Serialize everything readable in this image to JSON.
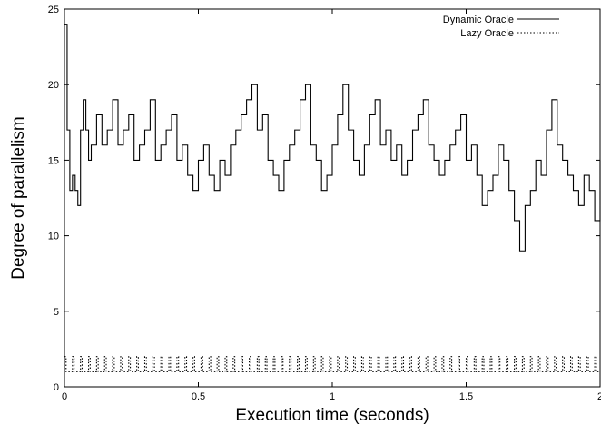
{
  "chart_data": {
    "type": "line",
    "xlabel": "Execution time (seconds)",
    "ylabel": "Degree of parallelism",
    "xlim": [
      0,
      2
    ],
    "ylim": [
      0,
      25
    ],
    "x_ticks": [
      0,
      0.5,
      1,
      1.5,
      2
    ],
    "x_tick_labels": [
      "0",
      "0.5",
      "1",
      "1.5",
      "2"
    ],
    "y_ticks": [
      0,
      5,
      10,
      15,
      20,
      25
    ],
    "y_tick_labels": [
      "0",
      "5",
      "10",
      "15",
      "20",
      "25"
    ],
    "grid": false,
    "legend_position": "top-right",
    "series": [
      {
        "name": "Dynamic Oracle",
        "style": "solid",
        "color": "#000000",
        "x": [
          0,
          0.01,
          0.02,
          0.03,
          0.04,
          0.05,
          0.06,
          0.07,
          0.08,
          0.09,
          0.1,
          0.12,
          0.14,
          0.16,
          0.18,
          0.2,
          0.22,
          0.24,
          0.26,
          0.28,
          0.3,
          0.32,
          0.34,
          0.36,
          0.38,
          0.4,
          0.42,
          0.44,
          0.46,
          0.48,
          0.5,
          0.52,
          0.54,
          0.56,
          0.58,
          0.6,
          0.62,
          0.64,
          0.66,
          0.68,
          0.7,
          0.72,
          0.74,
          0.76,
          0.78,
          0.8,
          0.82,
          0.84,
          0.86,
          0.88,
          0.9,
          0.92,
          0.94,
          0.96,
          0.98,
          1.0,
          1.02,
          1.04,
          1.06,
          1.08,
          1.1,
          1.12,
          1.14,
          1.16,
          1.18,
          1.2,
          1.22,
          1.24,
          1.26,
          1.28,
          1.3,
          1.32,
          1.34,
          1.36,
          1.38,
          1.4,
          1.42,
          1.44,
          1.46,
          1.48,
          1.5,
          1.52,
          1.54,
          1.56,
          1.58,
          1.6,
          1.62,
          1.64,
          1.66,
          1.68,
          1.7,
          1.72,
          1.74,
          1.76,
          1.78,
          1.8,
          1.82,
          1.84,
          1.86,
          1.88,
          1.9,
          1.92,
          1.94,
          1.96,
          1.98,
          2.0
        ],
        "y": [
          24,
          17,
          13,
          14,
          13,
          12,
          17,
          19,
          17,
          15,
          16,
          18,
          16,
          17,
          19,
          16,
          17,
          18,
          15,
          16,
          17,
          19,
          15,
          16,
          17,
          18,
          15,
          16,
          14,
          13,
          15,
          16,
          14,
          13,
          15,
          14,
          16,
          17,
          18,
          19,
          20,
          17,
          18,
          15,
          14,
          13,
          15,
          16,
          17,
          19,
          20,
          16,
          15,
          13,
          14,
          16,
          18,
          20,
          17,
          15,
          14,
          16,
          18,
          19,
          16,
          17,
          15,
          16,
          14,
          15,
          17,
          18,
          19,
          16,
          15,
          14,
          15,
          16,
          17,
          18,
          15,
          16,
          14,
          12,
          13,
          14,
          16,
          15,
          13,
          11,
          9,
          12,
          13,
          15,
          14,
          17,
          19,
          16,
          15,
          14,
          13,
          12,
          14,
          13,
          11,
          15
        ],
        "step": true
      },
      {
        "name": "Lazy Oracle",
        "style": "dotted",
        "color": "#000000",
        "x": [
          0.0,
          0.006,
          0.03,
          0.036,
          0.06,
          0.066,
          0.09,
          0.096,
          0.12,
          0.126,
          0.15,
          0.156,
          0.18,
          0.186,
          0.21,
          0.216,
          0.24,
          0.246,
          0.27,
          0.276,
          0.3,
          0.306,
          0.33,
          0.336,
          0.36,
          0.366,
          0.39,
          0.396,
          0.42,
          0.426,
          0.45,
          0.456,
          0.48,
          0.486,
          0.51,
          0.516,
          0.54,
          0.546,
          0.57,
          0.576,
          0.6,
          0.606,
          0.63,
          0.636,
          0.66,
          0.666,
          0.69,
          0.696,
          0.72,
          0.726,
          0.75,
          0.756,
          0.78,
          0.786,
          0.81,
          0.816,
          0.84,
          0.846,
          0.87,
          0.876,
          0.9,
          0.906,
          0.93,
          0.936,
          0.96,
          0.966,
          0.99,
          0.996,
          1.02,
          1.026,
          1.05,
          1.056,
          1.08,
          1.086,
          1.11,
          1.116,
          1.14,
          1.146,
          1.17,
          1.176,
          1.2,
          1.206,
          1.23,
          1.236,
          1.26,
          1.266,
          1.29,
          1.296,
          1.32,
          1.326,
          1.35,
          1.356,
          1.38,
          1.386,
          1.41,
          1.416,
          1.44,
          1.446,
          1.47,
          1.476,
          1.5,
          1.506,
          1.53,
          1.536,
          1.56,
          1.566,
          1.59,
          1.596,
          1.62,
          1.626,
          1.65,
          1.656,
          1.68,
          1.686,
          1.71,
          1.716,
          1.74,
          1.746,
          1.77,
          1.776,
          1.8,
          1.806,
          1.83,
          1.836,
          1.86,
          1.866,
          1.89,
          1.896,
          1.92,
          1.926,
          1.95,
          1.956,
          1.98,
          1.986,
          2.0
        ],
        "y": [
          2,
          1,
          2,
          1,
          2,
          1,
          2,
          1,
          2,
          1,
          2,
          1,
          2,
          1,
          2,
          1,
          2,
          1,
          2,
          1,
          2,
          1,
          2,
          1,
          2,
          1,
          2,
          1,
          2,
          1,
          2,
          1,
          2,
          1,
          2,
          1,
          2,
          1,
          2,
          1,
          2,
          1,
          2,
          1,
          2,
          1,
          2,
          1,
          2,
          1,
          2,
          1,
          2,
          1,
          2,
          1,
          2,
          1,
          2,
          1,
          2,
          1,
          2,
          1,
          2,
          1,
          2,
          1,
          2,
          1,
          2,
          1,
          2,
          1,
          2,
          1,
          2,
          1,
          2,
          1,
          2,
          1,
          2,
          1,
          2,
          1,
          2,
          1,
          2,
          1,
          2,
          1,
          2,
          1,
          2,
          1,
          2,
          1,
          2,
          1,
          2,
          1,
          2,
          1,
          2,
          1,
          2,
          1,
          2,
          1,
          2,
          1,
          2,
          1,
          2,
          1,
          2,
          1,
          2,
          1,
          2,
          1,
          2,
          1,
          2,
          1,
          2,
          1,
          2,
          1,
          2,
          1,
          2,
          1,
          1
        ],
        "step": true
      }
    ]
  }
}
